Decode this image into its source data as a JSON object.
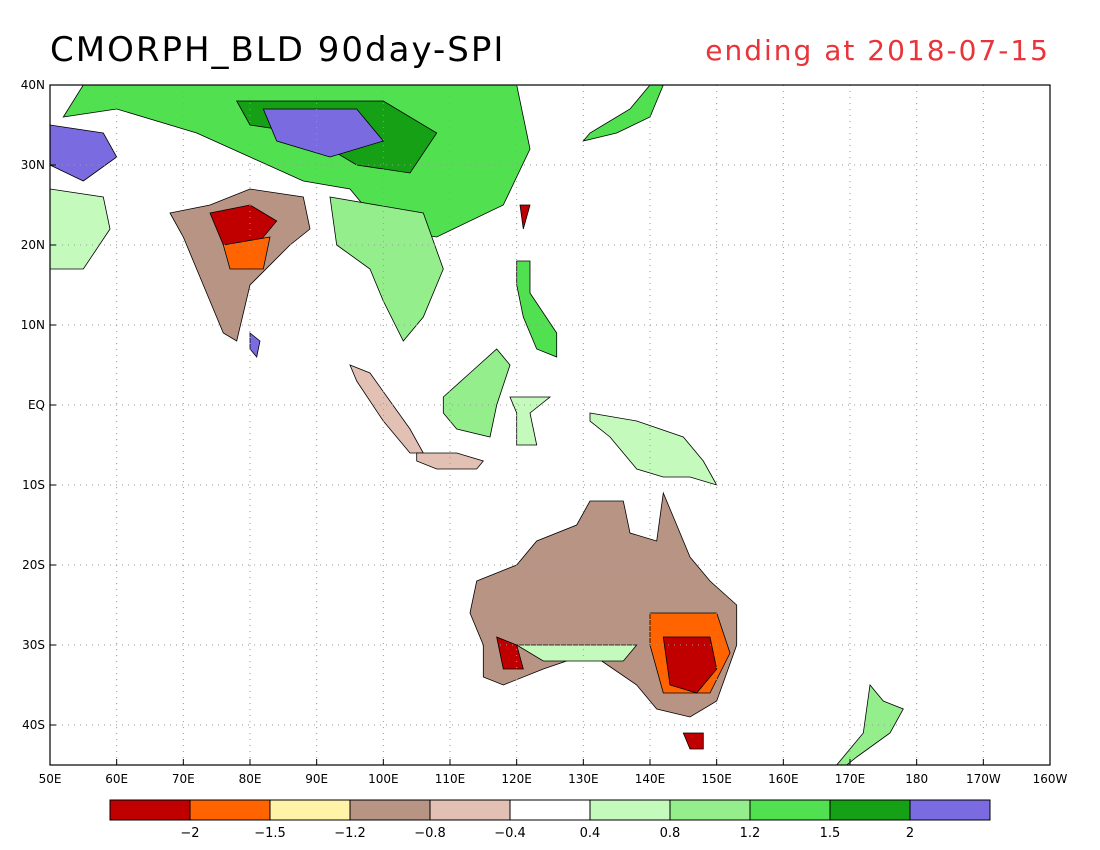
{
  "title": "CMORPH_BLD 90day-SPI",
  "subtitle": "ending at 2018-07-15",
  "colors": {
    "title": "#000000",
    "subtitle": "#e8343a"
  },
  "map": {
    "lon_range": [
      50,
      200
    ],
    "lat_range": [
      -45,
      40
    ],
    "grid": true,
    "x_ticks": [
      {
        "lon": 50,
        "label": "50E"
      },
      {
        "lon": 60,
        "label": "60E"
      },
      {
        "lon": 70,
        "label": "70E"
      },
      {
        "lon": 80,
        "label": "80E"
      },
      {
        "lon": 90,
        "label": "90E"
      },
      {
        "lon": 100,
        "label": "100E"
      },
      {
        "lon": 110,
        "label": "110E"
      },
      {
        "lon": 120,
        "label": "120E"
      },
      {
        "lon": 130,
        "label": "130E"
      },
      {
        "lon": 140,
        "label": "140E"
      },
      {
        "lon": 150,
        "label": "150E"
      },
      {
        "lon": 160,
        "label": "160E"
      },
      {
        "lon": 170,
        "label": "170E"
      },
      {
        "lon": 180,
        "label": "180"
      },
      {
        "lon": 190,
        "label": "170W"
      },
      {
        "lon": 200,
        "label": "160W"
      }
    ],
    "y_ticks": [
      {
        "lat": 40,
        "label": "40N"
      },
      {
        "lat": 30,
        "label": "30N"
      },
      {
        "lat": 20,
        "label": "20N"
      },
      {
        "lat": 10,
        "label": "10N"
      },
      {
        "lat": 0,
        "label": "EQ"
      },
      {
        "lat": -10,
        "label": "10S"
      },
      {
        "lat": -20,
        "label": "20S"
      },
      {
        "lat": -30,
        "label": "30S"
      },
      {
        "lat": -40,
        "label": "40S"
      }
    ]
  },
  "colorbar": {
    "colors": [
      "#c00000",
      "#ff6400",
      "#fff3a8",
      "#b89484",
      "#e2c0b4",
      "#ffffff",
      "#c4fbbc",
      "#94ee8c",
      "#50e050",
      "#16a016",
      "#7a6be0"
    ],
    "labels": [
      "-2",
      "-1.5",
      "-1.2",
      "-0.8",
      "-0.4",
      "0.4",
      "0.8",
      "1.2",
      "1.5",
      "2"
    ]
  },
  "regions": [
    {
      "name": "tibet-china",
      "fill": "#50e050",
      "pts": [
        [
          55,
          40
        ],
        [
          100,
          40
        ],
        [
          120,
          40
        ],
        [
          122,
          32
        ],
        [
          118,
          25
        ],
        [
          108,
          21
        ],
        [
          100,
          22
        ],
        [
          95,
          27
        ],
        [
          88,
          28
        ],
        [
          80,
          31
        ],
        [
          72,
          34
        ],
        [
          60,
          37
        ],
        [
          52,
          36
        ]
      ]
    },
    {
      "name": "china-wet-core",
      "fill": "#16a016",
      "pts": [
        [
          78,
          38
        ],
        [
          100,
          38
        ],
        [
          108,
          34
        ],
        [
          104,
          29
        ],
        [
          96,
          30
        ],
        [
          88,
          34
        ],
        [
          80,
          35
        ]
      ]
    },
    {
      "name": "tibet-very-wet",
      "fill": "#7a6be0",
      "pts": [
        [
          82,
          37
        ],
        [
          96,
          37
        ],
        [
          100,
          33
        ],
        [
          92,
          31
        ],
        [
          84,
          33
        ]
      ]
    },
    {
      "name": "iran-very-wet",
      "fill": "#7a6be0",
      "pts": [
        [
          50,
          35
        ],
        [
          58,
          34
        ],
        [
          60,
          31
        ],
        [
          55,
          28
        ],
        [
          50,
          30
        ]
      ]
    },
    {
      "name": "indochina",
      "fill": "#94ee8c",
      "pts": [
        [
          92,
          26
        ],
        [
          106,
          24
        ],
        [
          109,
          17
        ],
        [
          106,
          11
        ],
        [
          103,
          8
        ],
        [
          100,
          13
        ],
        [
          98,
          17
        ],
        [
          93,
          20
        ]
      ]
    },
    {
      "name": "india",
      "fill": "#b89484",
      "pts": [
        [
          68,
          24
        ],
        [
          74,
          25
        ],
        [
          80,
          27
        ],
        [
          88,
          26
        ],
        [
          89,
          22
        ],
        [
          86,
          20
        ],
        [
          80,
          15
        ],
        [
          78,
          8
        ],
        [
          76,
          9
        ],
        [
          73,
          15
        ],
        [
          70,
          21
        ]
      ]
    },
    {
      "name": "india-dry-1",
      "fill": "#c00000",
      "pts": [
        [
          74,
          24
        ],
        [
          80,
          25
        ],
        [
          84,
          23
        ],
        [
          81,
          20
        ],
        [
          76,
          20
        ]
      ]
    },
    {
      "name": "india-dry-2",
      "fill": "#ff6400",
      "pts": [
        [
          76,
          20
        ],
        [
          83,
          21
        ],
        [
          82,
          17
        ],
        [
          77,
          17
        ]
      ]
    },
    {
      "name": "arabia",
      "fill": "#c4fbbc",
      "pts": [
        [
          50,
          27
        ],
        [
          58,
          26
        ],
        [
          59,
          22
        ],
        [
          55,
          17
        ],
        [
          50,
          17
        ]
      ]
    },
    {
      "name": "sumatra",
      "fill": "#e2c0b4",
      "pts": [
        [
          95,
          5
        ],
        [
          98,
          4
        ],
        [
          104,
          -3
        ],
        [
          106,
          -6
        ],
        [
          104,
          -6
        ],
        [
          100,
          -2
        ],
        [
          96,
          3
        ]
      ]
    },
    {
      "name": "borneo",
      "fill": "#94ee8c",
      "pts": [
        [
          109,
          1
        ],
        [
          113,
          4
        ],
        [
          117,
          7
        ],
        [
          119,
          5
        ],
        [
          117,
          0
        ],
        [
          116,
          -4
        ],
        [
          111,
          -3
        ],
        [
          109,
          -1
        ]
      ]
    },
    {
      "name": "java",
      "fill": "#e2c0b4",
      "pts": [
        [
          105,
          -6
        ],
        [
          111,
          -6
        ],
        [
          115,
          -7
        ],
        [
          114,
          -8
        ],
        [
          108,
          -8
        ],
        [
          105,
          -7
        ]
      ]
    },
    {
      "name": "sulawesi",
      "fill": "#c4fbbc",
      "pts": [
        [
          119,
          1
        ],
        [
          125,
          1
        ],
        [
          122,
          -1
        ],
        [
          123,
          -5
        ],
        [
          120,
          -5
        ],
        [
          120,
          -1
        ]
      ]
    },
    {
      "name": "philippines",
      "fill": "#50e050",
      "pts": [
        [
          120,
          18
        ],
        [
          122,
          18
        ],
        [
          122,
          14
        ],
        [
          126,
          9
        ],
        [
          126,
          6
        ],
        [
          123,
          7
        ],
        [
          121,
          11
        ],
        [
          120,
          15
        ]
      ]
    },
    {
      "name": "new-guinea",
      "fill": "#c4fbbc",
      "pts": [
        [
          131,
          -1
        ],
        [
          138,
          -2
        ],
        [
          145,
          -4
        ],
        [
          148,
          -7
        ],
        [
          150,
          -10
        ],
        [
          146,
          -9
        ],
        [
          142,
          -9
        ],
        [
          138,
          -8
        ],
        [
          134,
          -4
        ],
        [
          131,
          -2
        ]
      ]
    },
    {
      "name": "japan",
      "fill": "#50e050",
      "pts": [
        [
          130,
          33
        ],
        [
          135,
          34
        ],
        [
          140,
          36
        ],
        [
          142,
          40
        ],
        [
          140,
          40
        ],
        [
          137,
          37
        ],
        [
          131,
          34
        ]
      ]
    },
    {
      "name": "taiwan",
      "fill": "#c00000",
      "pts": [
        [
          120.5,
          25
        ],
        [
          122,
          25
        ],
        [
          121,
          22
        ]
      ]
    },
    {
      "name": "australia",
      "fill": "#b89484",
      "pts": [
        [
          114,
          -22
        ],
        [
          120,
          -20
        ],
        [
          123,
          -17
        ],
        [
          129,
          -15
        ],
        [
          131,
          -12
        ],
        [
          136,
          -12
        ],
        [
          137,
          -16
        ],
        [
          141,
          -17
        ],
        [
          142,
          -11
        ],
        [
          144,
          -15
        ],
        [
          146,
          -19
        ],
        [
          149,
          -22
        ],
        [
          153,
          -25
        ],
        [
          153,
          -30
        ],
        [
          150,
          -37
        ],
        [
          146,
          -39
        ],
        [
          141,
          -38
        ],
        [
          138,
          -35
        ],
        [
          131,
          -31
        ],
        [
          124,
          -33
        ],
        [
          118,
          -35
        ],
        [
          115,
          -34
        ],
        [
          115,
          -30
        ],
        [
          113,
          -26
        ]
      ]
    },
    {
      "name": "australia-se-dry",
      "fill": "#ff6400",
      "pts": [
        [
          140,
          -26
        ],
        [
          150,
          -26
        ],
        [
          152,
          -31
        ],
        [
          149,
          -36
        ],
        [
          142,
          -36
        ],
        [
          140,
          -30
        ]
      ]
    },
    {
      "name": "australia-se-core",
      "fill": "#c00000",
      "pts": [
        [
          142,
          -29
        ],
        [
          149,
          -29
        ],
        [
          150,
          -33
        ],
        [
          147,
          -36
        ],
        [
          143,
          -35
        ]
      ]
    },
    {
      "name": "australia-sw-dry",
      "fill": "#c00000",
      "pts": [
        [
          117,
          -29
        ],
        [
          120,
          -30
        ],
        [
          121,
          -33
        ],
        [
          118,
          -33
        ]
      ]
    },
    {
      "name": "australia-south-wet",
      "fill": "#c4fbbc",
      "pts": [
        [
          120,
          -30
        ],
        [
          138,
          -30
        ],
        [
          136,
          -32
        ],
        [
          124,
          -32
        ]
      ]
    },
    {
      "name": "tasmania",
      "fill": "#c00000",
      "pts": [
        [
          145,
          -41
        ],
        [
          148,
          -41
        ],
        [
          148,
          -43
        ],
        [
          146,
          -43
        ]
      ]
    },
    {
      "name": "new-zealand",
      "fill": "#94ee8c",
      "pts": [
        [
          167,
          -46
        ],
        [
          172,
          -41
        ],
        [
          173,
          -35
        ],
        [
          175,
          -37
        ],
        [
          178,
          -38
        ],
        [
          176,
          -41
        ],
        [
          171,
          -44
        ],
        [
          168,
          -46
        ]
      ]
    },
    {
      "name": "sri-lanka",
      "fill": "#7a6be0",
      "pts": [
        [
          80,
          9
        ],
        [
          81.5,
          8
        ],
        [
          81,
          6
        ],
        [
          80,
          7
        ]
      ]
    }
  ]
}
